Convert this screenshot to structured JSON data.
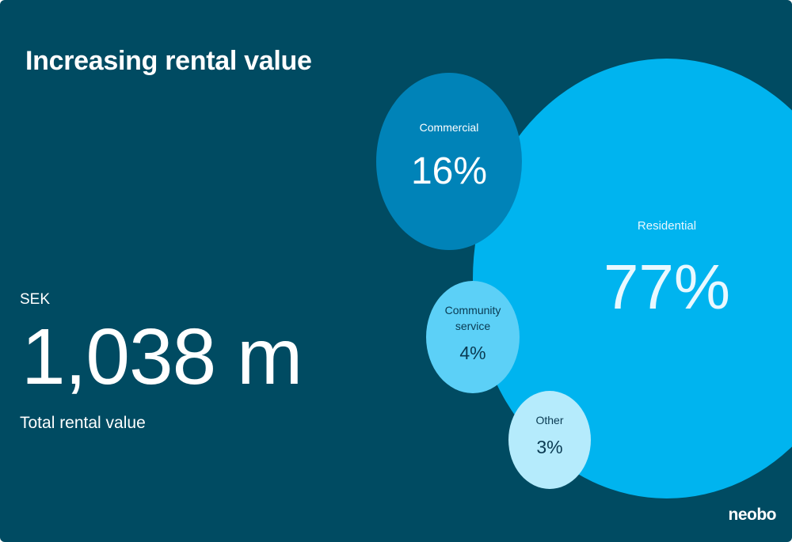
{
  "slide": {
    "title": "Increasing rental value",
    "kpi": {
      "unit": "SEK",
      "value": "1,038 m",
      "label": "Total rental value"
    },
    "logo": "neobo"
  },
  "colors": {
    "background": "#004b62",
    "text": "#ffffff"
  },
  "chart_data": {
    "type": "bubble",
    "title": "",
    "series": [
      {
        "category_lines": [
          "Residential"
        ],
        "value": 77,
        "value_label": "77%",
        "color": "#00b4ef",
        "text_color": "#e9f8ff"
      },
      {
        "category_lines": [
          "Commercial"
        ],
        "value": 16,
        "value_label": "16%",
        "color": "#0083b8",
        "text_color": "#ffffff"
      },
      {
        "category_lines": [
          "Community",
          "service"
        ],
        "value": 4,
        "value_label": "4%",
        "color": "#5cd0f7",
        "text_color": "#0a3a52"
      },
      {
        "category_lines": [
          "Other"
        ],
        "value": 3,
        "value_label": "3%",
        "color": "#b5ebfc",
        "text_color": "#0a3a52"
      }
    ]
  }
}
